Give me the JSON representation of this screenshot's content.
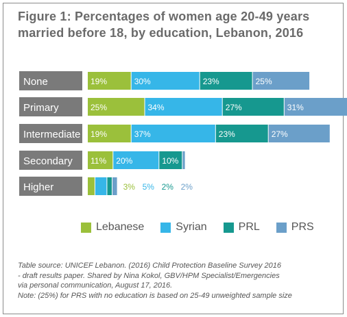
{
  "figure": {
    "title_line1": "Figure 1: Percentages of women age 20-49 years",
    "title_line2": "married before 18, by education, Lebanon, 2016"
  },
  "chart_data": {
    "type": "bar",
    "stacked": true,
    "orientation": "horizontal",
    "categories": [
      "None",
      "Primary",
      "Intermediate",
      "Secondary",
      "Higher"
    ],
    "series": [
      {
        "name": "Lebanese",
        "color": "#9bc03b",
        "values": [
          19,
          25,
          19,
          11,
          3
        ],
        "labels": [
          "19%",
          "25%",
          "19%",
          "11%",
          "3%"
        ]
      },
      {
        "name": "Syrian",
        "color": "#36b6e8",
        "values": [
          30,
          34,
          37,
          20,
          5
        ],
        "labels": [
          "30%",
          "34%",
          "37%",
          "20%",
          "5%"
        ]
      },
      {
        "name": "PRL",
        "color": "#16988f",
        "values": [
          23,
          27,
          23,
          10,
          2
        ],
        "labels": [
          "23%",
          "27%",
          "23%",
          "10%",
          "2%"
        ]
      },
      {
        "name": "PRS",
        "color": "#6b9fc9",
        "values": [
          25,
          31,
          27,
          1,
          2
        ],
        "labels": [
          "25%",
          "31%",
          "27%",
          "1%",
          "2%"
        ]
      }
    ],
    "category_label_color": "#7a7a7a",
    "legend_position": "bottom"
  },
  "source": {
    "line1": "Table source: UNICEF Lebanon. (2016) Child Protection Baseline Survey 2016",
    "line2": "- draft results paper. Shared by Nina Kokol, GBV/HPM Specialist/Emergencies",
    "line3": "via personal communication, August 17, 2016.",
    "line4": "Note: (25%) for PRS with no education is based on 25-49 unweighted sample size"
  }
}
